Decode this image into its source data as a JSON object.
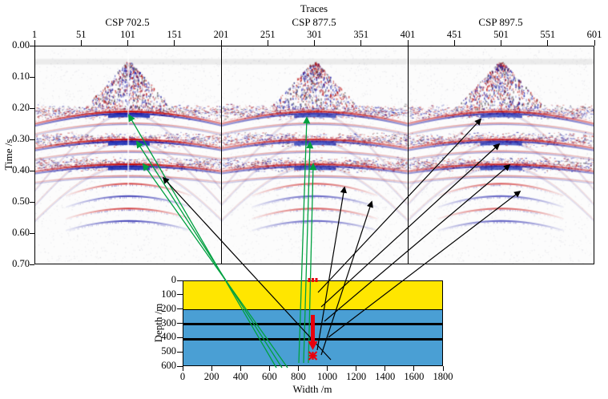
{
  "figure": {
    "top_axis": {
      "title": "Traces",
      "ticks": [
        "1",
        "51",
        "101",
        "151",
        "201",
        "251",
        "301",
        "351",
        "401",
        "451",
        "501",
        "551",
        "601"
      ]
    },
    "time_axis": {
      "label": "Time /s",
      "ticks": [
        "0.00",
        "0.10",
        "0.20",
        "0.30",
        "0.40",
        "0.50",
        "0.60",
        "0.70"
      ]
    },
    "panels": [
      {
        "title": "CSP 702.5"
      },
      {
        "title": "CSP 877.5"
      },
      {
        "title": "CSP 897.5"
      }
    ],
    "model": {
      "depth_axis": {
        "label": "Depth /m",
        "ticks": [
          "0",
          "100",
          "200",
          "300",
          "400",
          "500",
          "600"
        ]
      },
      "width_axis": {
        "label": "Width /m",
        "ticks": [
          "0",
          "200",
          "400",
          "600",
          "800",
          "1000",
          "1200",
          "1400",
          "1600",
          "1800"
        ]
      },
      "colors": {
        "layer1": "#ffe600",
        "layer2": "#4a9fd4",
        "interface": "#000000",
        "source": "#e8000d"
      }
    }
  },
  "chart_data": {
    "type": "heatmap",
    "description": "Three common-shot-point seismic gathers (CSP 702.5, 877.5, 897.5) shown in red/blue amplitude over time, above a layered depth model; green and black arrows link reflection events in the gathers to interfaces and a buried source in the model.",
    "panels": [
      {
        "title": "CSP 702.5",
        "apex_trace": 101
      },
      {
        "title": "CSP 877.5",
        "apex_trace": 301
      },
      {
        "title": "CSP 897.5",
        "apex_trace": 501
      }
    ],
    "trace_range": [
      1,
      601
    ],
    "time_range_s": [
      0.0,
      0.7
    ],
    "reflection_times_s": [
      0.21,
      0.3,
      0.38
    ],
    "deep_event_times_s": [
      0.44,
      0.48,
      0.52,
      0.56
    ],
    "direct_wave_window_s": [
      0.05,
      0.2
    ],
    "model": {
      "width_m": [
        0,
        1800
      ],
      "depth_m": [
        0,
        600
      ],
      "layers": [
        {
          "color": "#ffe600",
          "top_m": 0,
          "bottom_m": 200
        },
        {
          "color": "#4a9fd4",
          "top_m": 200,
          "bottom_m": 600
        }
      ],
      "interfaces_m": [
        200,
        300,
        410
      ],
      "source_width_m": 900,
      "source_depth_range_m": [
        240,
        520
      ]
    },
    "annotations": {
      "colors": {
        "green": "#00a040",
        "black": "#000000"
      },
      "green_arrows": [
        [
          345,
          459,
          161,
          144
        ],
        [
          352,
          459,
          171,
          177
        ],
        [
          359,
          459,
          179,
          205
        ],
        [
          373,
          453,
          383,
          147
        ],
        [
          379,
          453,
          387,
          178
        ],
        [
          385,
          453,
          391,
          205
        ]
      ],
      "black_arrows": [
        [
          413,
          449,
          204,
          222
        ],
        [
          396,
          437,
          430,
          234
        ],
        [
          401,
          443,
          464,
          252
        ],
        [
          397,
          365,
          600,
          149
        ],
        [
          401,
          383,
          623,
          180
        ],
        [
          405,
          401,
          636,
          206
        ],
        [
          410,
          421,
          649,
          239
        ]
      ]
    }
  }
}
